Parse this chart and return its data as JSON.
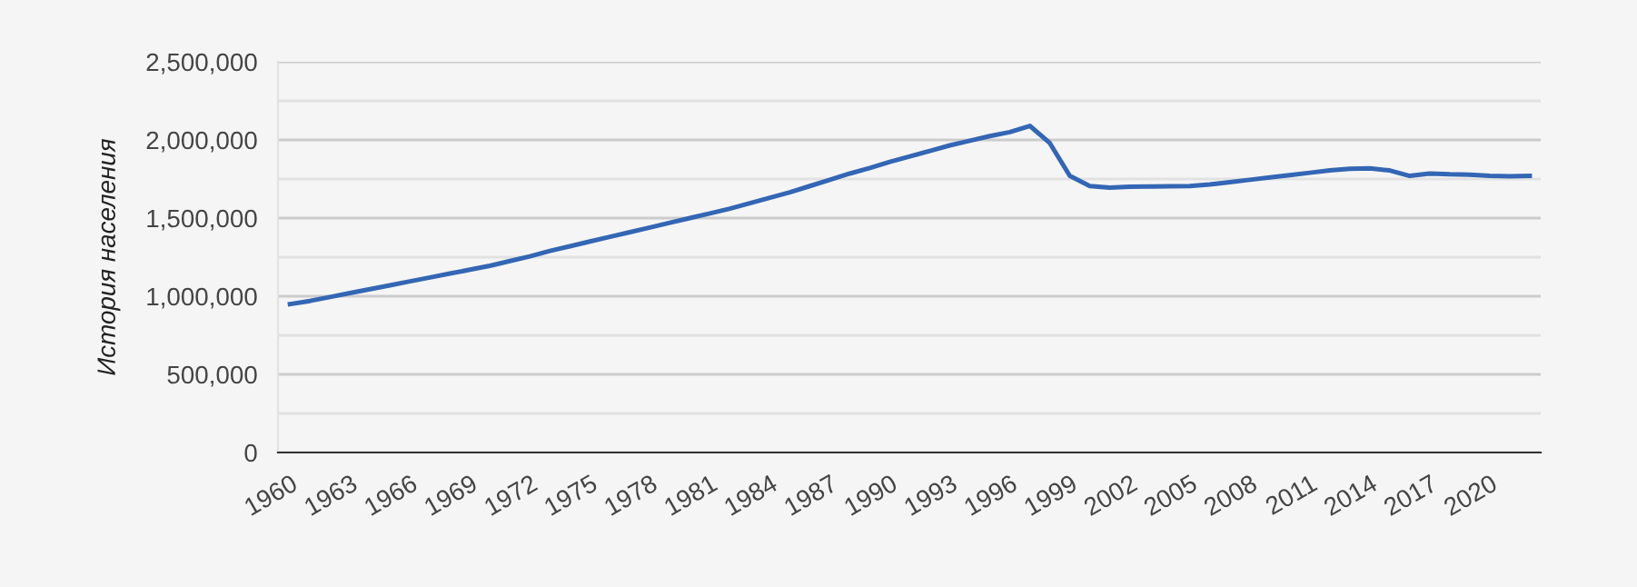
{
  "chart_data": {
    "type": "line",
    "ylabel": "История населения",
    "categories": [
      "1960",
      null,
      null,
      "1963",
      null,
      null,
      "1966",
      null,
      null,
      "1969",
      null,
      null,
      "1972",
      null,
      null,
      "1975",
      null,
      null,
      "1978",
      null,
      null,
      "1981",
      null,
      null,
      "1984",
      null,
      null,
      "1987",
      null,
      null,
      "1990",
      null,
      null,
      "1993",
      null,
      null,
      "1996",
      null,
      null,
      "1999",
      null,
      null,
      "2002",
      null,
      null,
      "2005",
      null,
      null,
      "2008",
      null,
      null,
      "2011",
      null,
      null,
      "2014",
      null,
      null,
      "2017",
      null,
      null,
      "2020",
      null,
      null
    ],
    "series": [
      {
        "color": "#3366b4",
        "values": [
          950000,
          970000,
          995000,
          1020000,
          1045000,
          1070000,
          1095000,
          1120000,
          1145000,
          1170000,
          1195000,
          1225000,
          1255000,
          1290000,
          1320000,
          1350000,
          1380000,
          1410000,
          1440000,
          1470000,
          1500000,
          1530000,
          1560000,
          1595000,
          1630000,
          1665000,
          1705000,
          1745000,
          1785000,
          1820000,
          1860000,
          1895000,
          1930000,
          1965000,
          1995000,
          2025000,
          2050000,
          2090000,
          1980000,
          1770000,
          1705000,
          1695000,
          1700000,
          1702000,
          1703000,
          1705000,
          1715000,
          1730000,
          1745000,
          1760000,
          1775000,
          1790000,
          1805000,
          1815000,
          1818000,
          1805000,
          1770000,
          1785000,
          1780000,
          1778000,
          1770000,
          1768000,
          1770000
        ]
      }
    ],
    "ylim": [
      0,
      2500000
    ],
    "yticks": [
      {
        "value": 0,
        "label": "0"
      },
      {
        "value": 250000,
        "label": null
      },
      {
        "value": 500000,
        "label": "500,000"
      },
      {
        "value": 750000,
        "label": null
      },
      {
        "value": 1000000,
        "label": "1,000,000"
      },
      {
        "value": 1250000,
        "label": null
      },
      {
        "value": 1500000,
        "label": "1,500,000"
      },
      {
        "value": 1750000,
        "label": null
      },
      {
        "value": 2000000,
        "label": "2,000,000"
      },
      {
        "value": 2250000,
        "label": null
      },
      {
        "value": 2500000,
        "label": "2,500,000"
      }
    ],
    "grid": "y",
    "legend": false,
    "marker": "none",
    "line_style": "solid"
  }
}
